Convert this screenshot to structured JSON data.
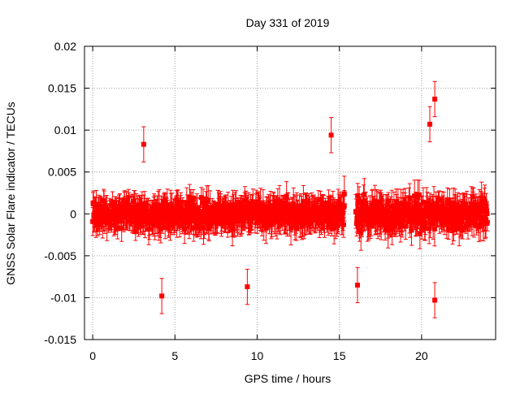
{
  "chart_data": {
    "type": "scatter",
    "title": "Day 331 of 2019",
    "xlabel": "GPS time / hours",
    "ylabel": "GNSS Solar Flare indicator / TECUs",
    "xlim": [
      -0.5,
      24.5
    ],
    "ylim": [
      -0.015,
      0.02
    ],
    "xticks": [
      0,
      5,
      10,
      15,
      20
    ],
    "xtick_labels": [
      "0",
      "5",
      "10",
      "15",
      "20"
    ],
    "yticks": [
      -0.015,
      -0.01,
      -0.005,
      0,
      0.005,
      0.01,
      0.015,
      0.02
    ],
    "ytick_labels": [
      "-0.015",
      "-0.01",
      "-0.005",
      "0",
      "0.005",
      "0.01",
      "0.015",
      "0.02"
    ],
    "grid": true,
    "legend": "none",
    "series": [
      {
        "color": "#ff0000",
        "marker": "square",
        "error_bars": true,
        "segments": [
          {
            "x_start": 0.0,
            "x_end": 15.3,
            "typical_range": [
              -0.006,
              0.006
            ],
            "typical_error": 0.0015
          },
          {
            "x_start": 16.0,
            "x_end": 24.0,
            "typical_range": [
              -0.007,
              0.007
            ],
            "typical_error": 0.0015
          }
        ],
        "notable_points": [
          {
            "x": 4.2,
            "y": -0.0098
          },
          {
            "x": 9.4,
            "y": -0.0087
          },
          {
            "x": 14.5,
            "y": 0.0094
          },
          {
            "x": 15.3,
            "y": 0.0024
          },
          {
            "x": 16.1,
            "y": -0.0085
          },
          {
            "x": 20.8,
            "y": 0.0137
          },
          {
            "x": 20.5,
            "y": 0.0107
          },
          {
            "x": 20.8,
            "y": -0.0103
          },
          {
            "x": 3.1,
            "y": 0.0083
          }
        ]
      }
    ]
  }
}
